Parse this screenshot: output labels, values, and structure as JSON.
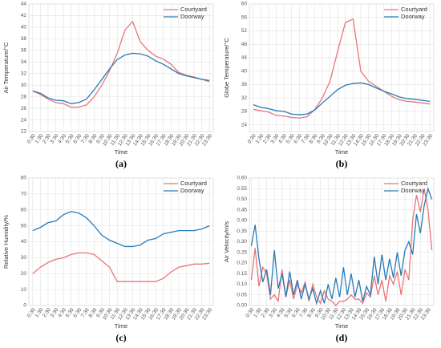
{
  "chart_data": [
    {
      "type": "line",
      "panel_label": "(a)",
      "y_label": "Air Temperature/°C",
      "x_label": "Time",
      "legend": "top-right",
      "grid": true,
      "categories": [
        "0:30",
        "1:30",
        "2:30",
        "3:30",
        "4:30",
        "5:30",
        "6:30",
        "7:30",
        "8:30",
        "9:30",
        "10:30",
        "11:30",
        "12:30",
        "13:30",
        "14:30",
        "15:30",
        "16:30",
        "17:30",
        "18:30",
        "19:30",
        "20:30",
        "21:30",
        "22:30",
        "23:30"
      ],
      "ylim": [
        22,
        44
      ],
      "yticks": [
        22,
        24,
        26,
        28,
        30,
        32,
        34,
        36,
        38,
        40,
        42,
        44
      ],
      "series": [
        {
          "name": "Courtyard",
          "color": "#e8757a",
          "values": [
            29,
            28.4,
            27.6,
            27,
            26.8,
            26.2,
            26.2,
            26.6,
            28,
            30,
            32.5,
            35.5,
            39.5,
            41,
            37.5,
            36,
            35,
            34.5,
            33.6,
            32.2,
            31.7,
            31.4,
            31,
            30.6
          ]
        },
        {
          "name": "Doorway",
          "color": "#2a7ab5",
          "values": [
            29,
            28.6,
            27.8,
            27.4,
            27.3,
            26.8,
            27,
            27.6,
            29.2,
            31,
            32.8,
            34.4,
            35.2,
            35.5,
            35.4,
            35,
            34.2,
            33.6,
            32.8,
            32,
            31.6,
            31.3,
            31,
            30.8
          ]
        }
      ]
    },
    {
      "type": "line",
      "panel_label": "(b)",
      "y_label": "Globe Temperature/°C",
      "x_label": "Time",
      "legend": "top-right",
      "grid": true,
      "categories": [
        "0:30",
        "1:30",
        "2:30",
        "3:30",
        "4:30",
        "5:30",
        "6:30",
        "7:30",
        "8:30",
        "9:30",
        "10:30",
        "11:30",
        "12:30",
        "13:30",
        "14:30",
        "15:30",
        "16:30",
        "17:30",
        "18:30",
        "19:30",
        "20:30",
        "21:30",
        "22:30",
        "23:30"
      ],
      "ylim": [
        22,
        60
      ],
      "yticks": [
        24,
        28,
        32,
        36,
        40,
        44,
        48,
        52,
        56,
        60
      ],
      "series": [
        {
          "name": "Courtyard",
          "color": "#e8757a",
          "values": [
            28.6,
            28.2,
            27.8,
            26.8,
            26.6,
            26.2,
            26,
            26.4,
            28.5,
            32,
            37,
            46,
            54.5,
            55.5,
            40,
            37,
            35.5,
            34,
            32.5,
            31.5,
            31,
            30.8,
            30.5,
            30.2
          ]
        },
        {
          "name": "Doorway",
          "color": "#2a7ab5",
          "values": [
            30,
            29.2,
            28.8,
            28.2,
            28,
            27.2,
            27,
            27.2,
            28.4,
            30.5,
            32.5,
            34.5,
            35.8,
            36.3,
            36.5,
            36,
            35,
            34,
            33.2,
            32.3,
            31.8,
            31.6,
            31.3,
            31
          ]
        }
      ]
    },
    {
      "type": "line",
      "panel_label": "(c)",
      "y_label": "Relative Humidity/%",
      "x_label": "Time",
      "legend": "top-right",
      "grid": true,
      "categories": [
        "0:30",
        "1:30",
        "2:30",
        "3:30",
        "4:30",
        "5:30",
        "6:30",
        "7:30",
        "8:30",
        "9:30",
        "10:30",
        "11:30",
        "12:30",
        "13:30",
        "14:30",
        "15:30",
        "16:30",
        "17:30",
        "18:30",
        "19:30",
        "20:30",
        "21:30",
        "22:30",
        "23:30"
      ],
      "ylim": [
        0,
        80
      ],
      "yticks": [
        0,
        10,
        20,
        30,
        40,
        50,
        60,
        70,
        80
      ],
      "series": [
        {
          "name": "Courtyard",
          "color": "#e8757a",
          "values": [
            20,
            24,
            27,
            29,
            30,
            32,
            33,
            33,
            32,
            28,
            24,
            15,
            15,
            15,
            15,
            15,
            15,
            17,
            21,
            24,
            25,
            26,
            26,
            26.5
          ]
        },
        {
          "name": "Doorway",
          "color": "#2a7ab5",
          "values": [
            47,
            49,
            52,
            53,
            57,
            59,
            58,
            55,
            50,
            44,
            41,
            39,
            37,
            37,
            38,
            41,
            42,
            45,
            46,
            47,
            47,
            47,
            48,
            50
          ]
        }
      ]
    },
    {
      "type": "line",
      "panel_label": "(d)",
      "y_label": "Air Velocity/m/s",
      "x_label": "Time",
      "legend": "top-right",
      "grid": true,
      "categories": [
        "0:30",
        null,
        "1:30",
        null,
        "2:30",
        null,
        "3:30",
        null,
        "4:30",
        null,
        "5:30",
        null,
        "6:30",
        null,
        "7:30",
        null,
        "8:30",
        null,
        "9:30",
        null,
        "10:30",
        null,
        "11:30",
        null,
        "12:30",
        null,
        "13:30",
        null,
        "14:30",
        null,
        "15:30",
        null,
        "16:30",
        null,
        "17:30",
        null,
        "18:30",
        null,
        "19:30",
        null,
        "20:30",
        null,
        "21:30",
        null,
        "22:30",
        null,
        "23:30",
        null
      ],
      "ylim": [
        0,
        0.6
      ],
      "yticks": [
        {
          "value": 0,
          "label": "0.00"
        },
        {
          "value": 0.05,
          "label": "0.05"
        },
        {
          "value": 0.1,
          "label": "0.10"
        },
        {
          "value": 0.15,
          "label": "0.15"
        },
        {
          "value": 0.2,
          "label": "0.20"
        },
        {
          "value": 0.25,
          "label": "0.25"
        },
        {
          "value": 0.3,
          "label": "0.30"
        },
        {
          "value": 0.35,
          "label": "0.35"
        },
        {
          "value": 0.4,
          "label": "0.40"
        },
        {
          "value": 0.45,
          "label": "0.45"
        },
        {
          "value": 0.5,
          "label": "0.50"
        },
        {
          "value": 0.55,
          "label": "0.55"
        },
        {
          "value": 0.6,
          "label": "0.60"
        }
      ],
      "series": [
        {
          "name": "Courtyard",
          "color": "#e8757a",
          "values": [
            0.12,
            0.27,
            0.09,
            0.18,
            0.15,
            0.03,
            0.05,
            0.02,
            0.17,
            0.04,
            0.12,
            0.03,
            0.1,
            0.06,
            0.11,
            0.02,
            0.1,
            0.04,
            0.01,
            0.07,
            0.03,
            0.02,
            0.0,
            0.02,
            0.02,
            0.03,
            0.05,
            0.03,
            0.03,
            0.01,
            0.06,
            0.04,
            0.14,
            0.05,
            0.12,
            0.02,
            0.14,
            0.1,
            0.16,
            0.05,
            0.17,
            0.12,
            0.4,
            0.52,
            0.44,
            0.55,
            0.45,
            0.26
          ]
        },
        {
          "name": "Doorway",
          "color": "#2a7ab5",
          "values": [
            0.28,
            0.38,
            0.22,
            0.11,
            0.17,
            0.05,
            0.26,
            0.08,
            0.15,
            0.04,
            0.16,
            0.05,
            0.12,
            0.03,
            0.1,
            0.03,
            0.08,
            0.01,
            0.07,
            0.01,
            0.1,
            0.03,
            0.13,
            0.04,
            0.18,
            0.05,
            0.15,
            0.04,
            0.12,
            0.02,
            0.09,
            0.05,
            0.23,
            0.1,
            0.24,
            0.12,
            0.22,
            0.13,
            0.25,
            0.14,
            0.26,
            0.3,
            0.24,
            0.43,
            0.34,
            0.47,
            0.55,
            0.5
          ]
        }
      ]
    }
  ]
}
